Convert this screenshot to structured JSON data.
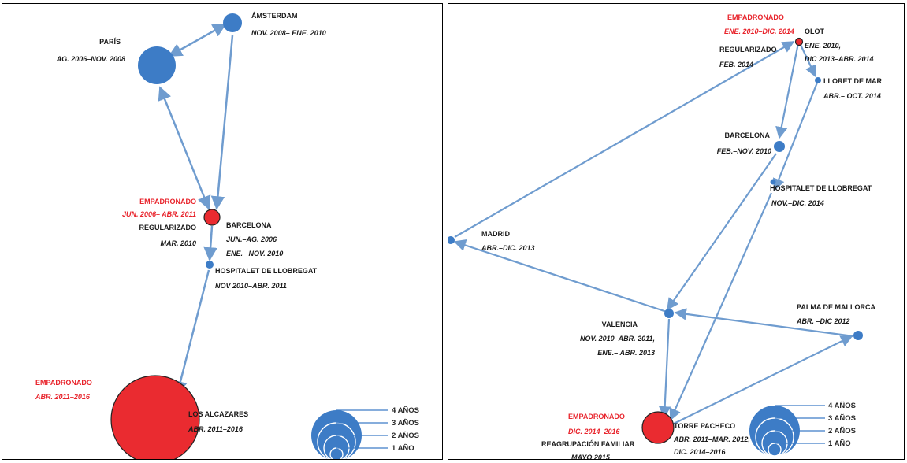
{
  "colors": {
    "blue_node": "#3d7cc6",
    "blue_edge": "#6f9ccf",
    "red_node": "#ea2b30",
    "red_text": "#e8232b",
    "text": "#1a1a1a"
  },
  "left": {
    "paris": {
      "name": "PARÍS",
      "dates": "AG. 2006–NOV. 2008"
    },
    "amsterdam": {
      "name": "ÁMSTERDAM",
      "dates": "NOV. 2008– ENE. 2010"
    },
    "empadronado1": {
      "status": "EMPADRONADO",
      "dates": "JUN. 2006– ABR. 2011"
    },
    "regularizado": {
      "status": "REGULARIZADO",
      "date": "MAR. 2010"
    },
    "barcelona": {
      "name": "BARCELONA",
      "dates1": "JUN.–AG. 2006",
      "dates2": "ENE.– NOV. 2010"
    },
    "hospitalet": {
      "name": "HOSPITALET DE LLOBREGAT",
      "dates": "NOV 2010–ABR. 2011"
    },
    "empadronado2": {
      "status": "EMPADRONADO",
      "dates": "ABR. 2011–2016"
    },
    "alcazares": {
      "name": "LOS ALCAZARES",
      "dates": "ABR. 2011–2016"
    },
    "legend": [
      "4 AÑOS",
      "3 AÑOS",
      "2 AÑOS",
      "1 AÑO"
    ]
  },
  "right": {
    "empadronado_olot": {
      "status": "EMPADRONADO",
      "dates": "ENE. 2010–DIC. 2014"
    },
    "olot": {
      "name": "OLOT",
      "dates1": "ENE. 2010,",
      "dates2": "DIC 2013–ABR. 2014"
    },
    "regularizado": {
      "status": "REGULARIZADO",
      "date": "FEB. 2014"
    },
    "lloret": {
      "name": "LLORET DE MAR",
      "dates": "ABR.– OCT. 2014"
    },
    "barcelona": {
      "name": "BARCELONA",
      "dates": "FEB.–NOV. 2010"
    },
    "hospitalet": {
      "name": "HOSPITALET DE LLOBREGAT",
      "dates": "NOV.–DIC. 2014"
    },
    "madrid": {
      "name": "MADRID",
      "dates": "ABR.–DIC. 2013"
    },
    "valencia": {
      "name": "VALENCIA",
      "dates1": "NOV. 2010–ABR. 2011,",
      "dates2": "ENE.– ABR. 2013"
    },
    "palma": {
      "name": "PALMA DE MALLORCA",
      "dates": "ABR. –DIC 2012"
    },
    "empadronado_torre": {
      "status": "EMPADRONADO",
      "dates": "DIC. 2014–2016"
    },
    "torre": {
      "name": "TORRE PACHECO",
      "dates1": "ABR. 2011–MAR. 2012,",
      "dates2": "DIC. 2014–2016"
    },
    "reagrupacion": {
      "status": "REAGRUPACIÓN FAMILIAR",
      "date": "MAYO 2015"
    },
    "legend": [
      "4 AÑOS",
      "3 AÑOS",
      "2 AÑOS",
      "1 AÑO"
    ]
  }
}
